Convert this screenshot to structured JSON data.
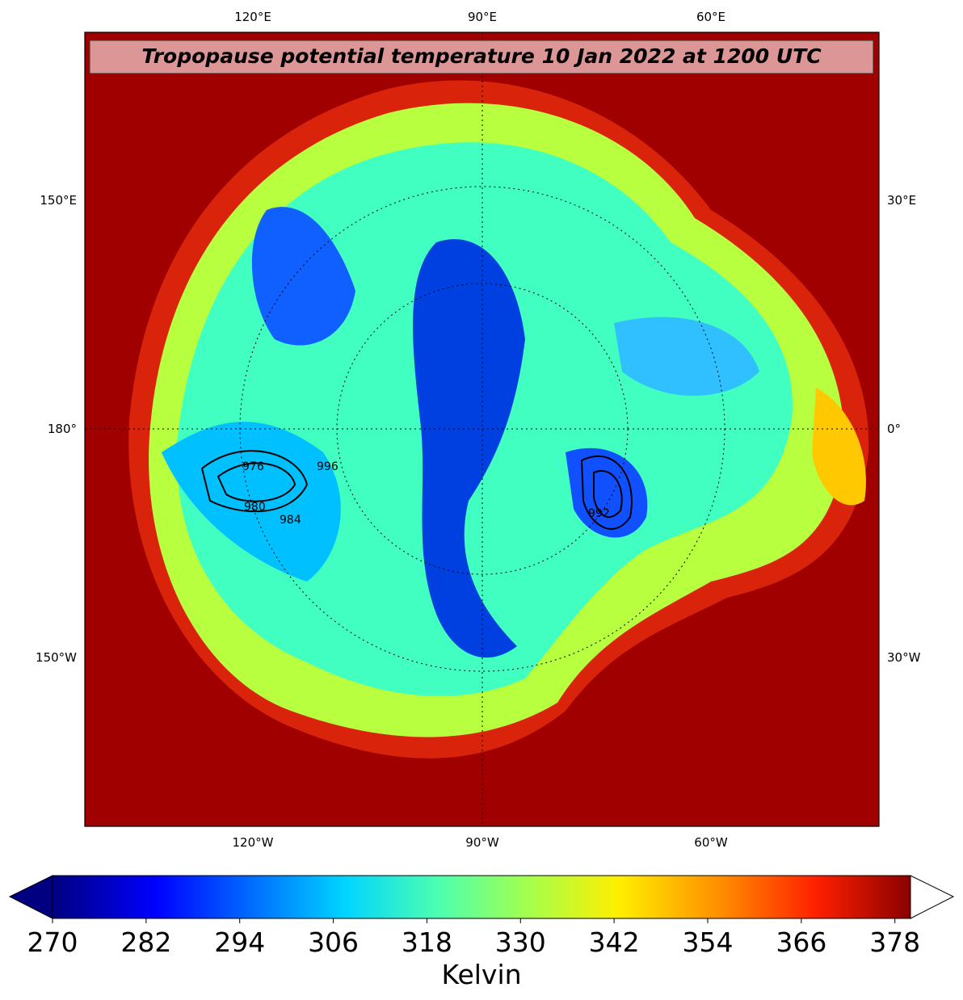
{
  "map": {
    "title": "Tropopause potential temperature 10 Jan 2022 at 1200 UTC",
    "top_labels": [
      "120°E",
      "90°E",
      "60°E"
    ],
    "left_labels": [
      "150°E",
      "180°",
      "150°W"
    ],
    "right_labels": [
      "30°E",
      "0°",
      "30°W"
    ],
    "bottom_labels": [
      "120°W",
      "90°W",
      "60°W"
    ],
    "contour_labels": [
      "976",
      "980",
      "984",
      "996",
      "992"
    ]
  },
  "colorbar": {
    "lim": [
      270,
      380
    ],
    "ticks": [
      270,
      282,
      294,
      306,
      318,
      330,
      342,
      354,
      366,
      378
    ],
    "label": "Kelvin"
  }
}
